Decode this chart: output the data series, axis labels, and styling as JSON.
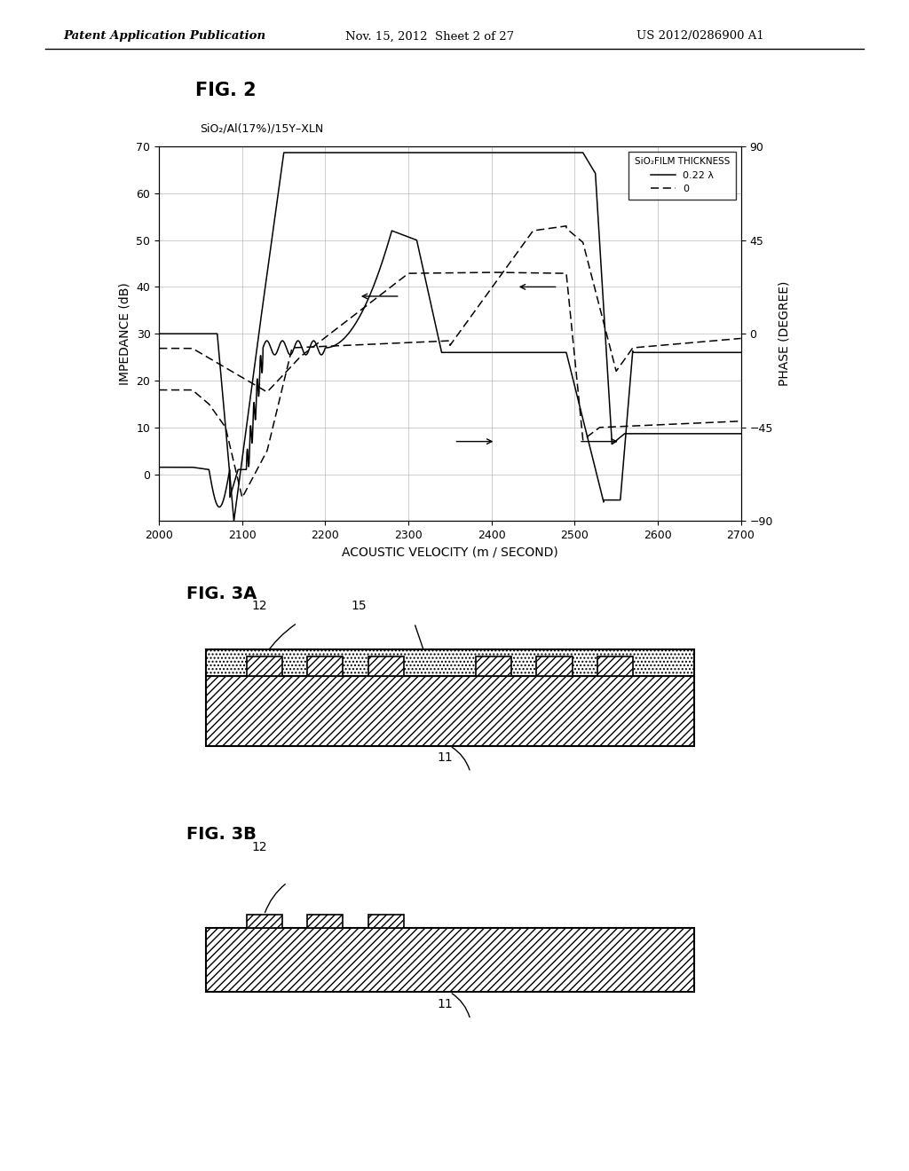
{
  "header_left": "Patent Application Publication",
  "header_mid": "Nov. 15, 2012  Sheet 2 of 27",
  "header_right": "US 2012/0286900 A1",
  "fig2_label": "FIG. 2",
  "fig2_subtitle": "SiO₂/Al(17%)/15Y–XLN",
  "xlabel": "ACOUSTIC VELOCITY (m / SECOND)",
  "ylabel_left": "IMPEDANCE (dB)",
  "ylabel_right": "PHASE (DEGREE)",
  "xlim": [
    2000,
    2700
  ],
  "ylim_left": [
    -10,
    70
  ],
  "ylim_right": [
    -90,
    90
  ],
  "yticks_left": [
    0,
    10,
    20,
    30,
    40,
    50,
    60,
    70
  ],
  "yticks_right": [
    -90,
    -45,
    0,
    45,
    90
  ],
  "xticks": [
    2000,
    2100,
    2200,
    2300,
    2400,
    2500,
    2600,
    2700
  ],
  "legend_title": "SiO₂FILM THICKNESS",
  "legend_solid": "0.22 λ",
  "legend_dashed": "0",
  "fig3a_label": "FIG. 3A",
  "fig3b_label": "FIG. 3B",
  "label_12a": "12",
  "label_15": "15",
  "label_11a": "11",
  "label_12b": "12",
  "label_11b": "11",
  "bg_color": "#ffffff",
  "line_color": "#000000"
}
